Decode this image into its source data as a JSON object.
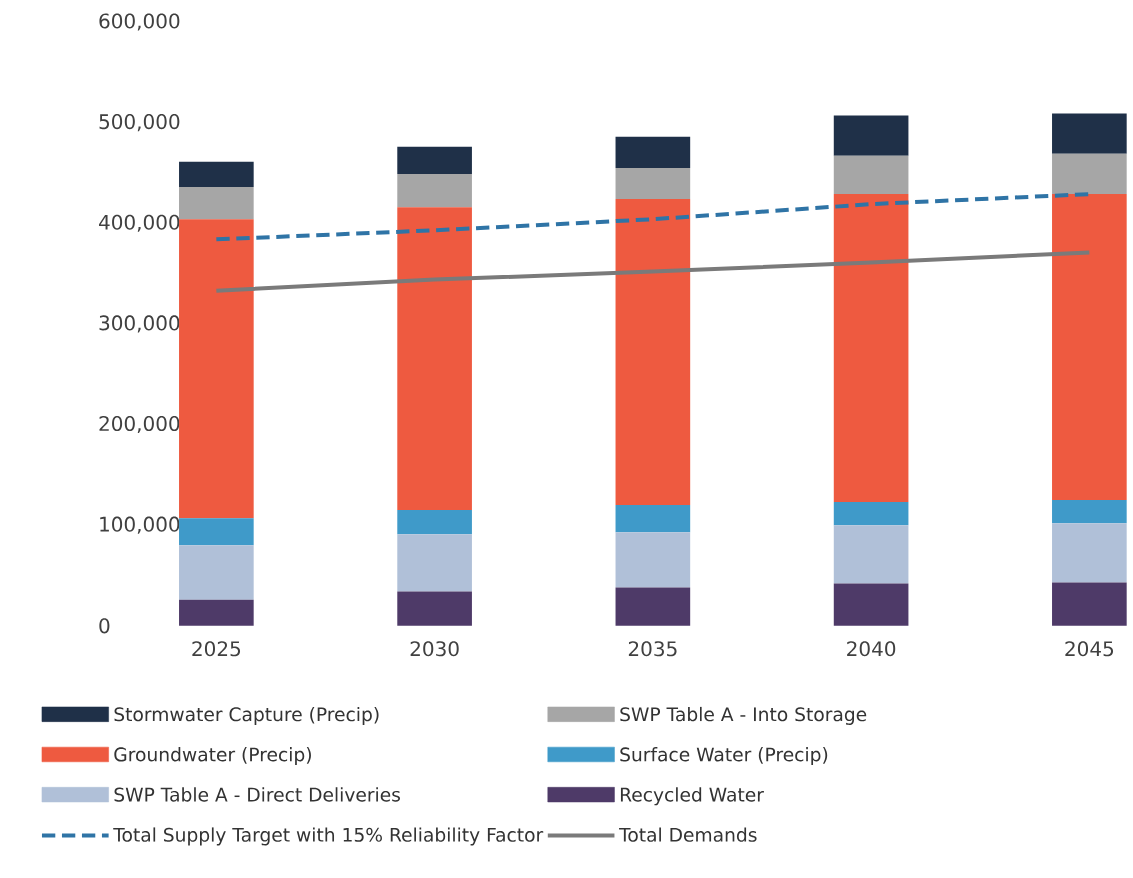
{
  "chart_data": {
    "type": "bar",
    "stacked": true,
    "categories": [
      "2025",
      "2030",
      "2035",
      "2040",
      "2045"
    ],
    "series": [
      {
        "name": "Recycled Water",
        "color": "#4e3a68",
        "values": [
          26000,
          34000,
          38000,
          42000,
          43000
        ]
      },
      {
        "name": "SWP Table A - Direct Deliveries",
        "color": "#b0c0d8",
        "values": [
          54000,
          57000,
          55000,
          58000,
          59000
        ]
      },
      {
        "name": "Surface Water (Precip)",
        "color": "#3f9ac9",
        "values": [
          27000,
          24000,
          27000,
          23000,
          23000
        ]
      },
      {
        "name": "Groundwater (Precip)",
        "color": "#ee5a40",
        "values": [
          297000,
          301000,
          304000,
          306000,
          304000
        ]
      },
      {
        "name": "SWP Table A - Into Storage",
        "color": "#a6a6a6",
        "values": [
          32000,
          33000,
          31000,
          38000,
          40000
        ]
      },
      {
        "name": "Stormwater Capture (Precip)",
        "color": "#1f3048",
        "values": [
          25000,
          27000,
          31000,
          40000,
          40000
        ]
      },
      {
        "name": "Total Supply Target with 15% Reliability Factor",
        "type": "line",
        "line_style": "dashed",
        "color": "#2f74a6",
        "values": [
          384000,
          393000,
          404000,
          419000,
          429000
        ]
      },
      {
        "name": "Total Demands",
        "type": "line",
        "line_style": "solid",
        "color": "#7a7a7a",
        "values": [
          333000,
          344000,
          352000,
          361000,
          371000
        ]
      }
    ],
    "ylim": [
      0,
      600000
    ],
    "yticks": [
      {
        "value": 0,
        "label": "0"
      },
      {
        "value": 100000,
        "label": "100,000"
      },
      {
        "value": 200000,
        "label": "200,000"
      },
      {
        "value": 300000,
        "label": "300,000"
      },
      {
        "value": 400000,
        "label": "400,000"
      },
      {
        "value": 500000,
        "label": "500,000"
      },
      {
        "value": 600000,
        "label": "600,000"
      }
    ],
    "grid": false,
    "legend": "bottom"
  }
}
